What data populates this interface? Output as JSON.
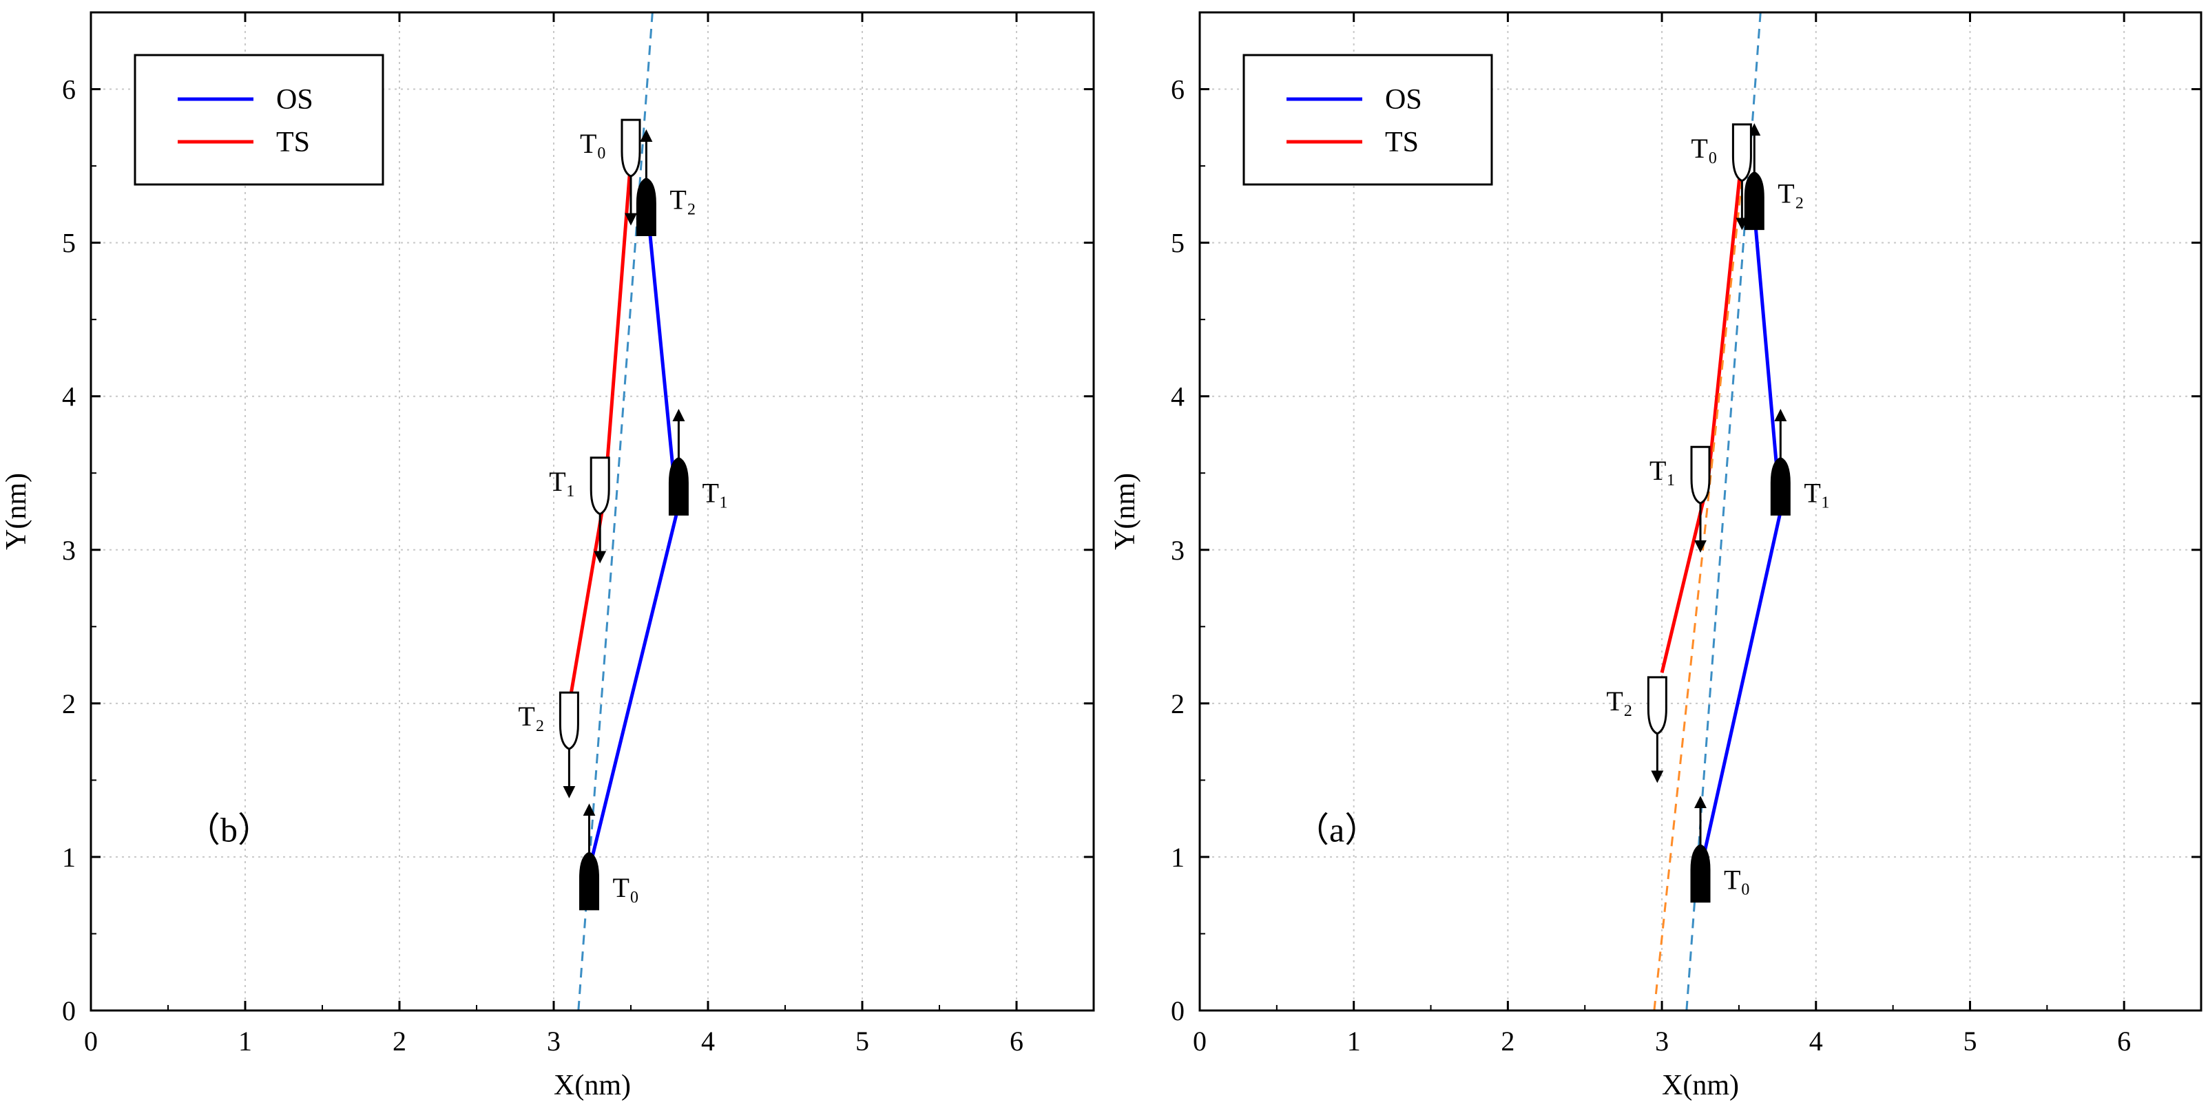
{
  "chart_data": [
    {
      "type": "line",
      "panel_label": "（b）",
      "xlabel": "X(nm)",
      "ylabel": "Y(nm)",
      "xlim": [
        0,
        6.5
      ],
      "ylim": [
        0,
        6.5
      ],
      "xticks": [
        0,
        1,
        2,
        3,
        4,
        5,
        6
      ],
      "yticks": [
        0,
        1,
        2,
        3,
        4,
        5,
        6
      ],
      "grid": true,
      "legend": {
        "position": "top-left",
        "entries": [
          {
            "label": "OS",
            "color": "#0000ff"
          },
          {
            "label": "TS",
            "color": "#ff0000"
          }
        ]
      },
      "series": [
        {
          "name": "OS",
          "color": "#0000ff",
          "style": "solid",
          "x": [
            3.25,
            3.8,
            3.62
          ],
          "y": [
            1.0,
            3.25,
            5.1
          ]
        },
        {
          "name": "TS",
          "color": "#ff0000",
          "style": "solid",
          "x": [
            3.5,
            3.33,
            3.11
          ],
          "y": [
            5.55,
            3.35,
            2.05
          ]
        },
        {
          "name": "reference",
          "color": "#3b8ec4",
          "style": "dashed",
          "x": [
            3.16,
            3.64
          ],
          "y": [
            0.0,
            6.5
          ]
        }
      ],
      "ships": [
        {
          "vessel": "OS",
          "label": "T₀",
          "x": 3.23,
          "y": 0.83,
          "heading": "up",
          "fill": "black"
        },
        {
          "vessel": "OS",
          "label": "T₁",
          "x": 3.81,
          "y": 3.4,
          "heading": "up",
          "fill": "black"
        },
        {
          "vessel": "OS",
          "label": "T₂",
          "x": 3.6,
          "y": 5.22,
          "heading": "up",
          "fill": "black"
        },
        {
          "vessel": "TS",
          "label": "T₀",
          "x": 3.5,
          "y": 5.63,
          "heading": "down",
          "fill": "white"
        },
        {
          "vessel": "TS",
          "label": "T₁",
          "x": 3.3,
          "y": 3.43,
          "heading": "down",
          "fill": "white"
        },
        {
          "vessel": "TS",
          "label": "T₂",
          "x": 3.1,
          "y": 1.9,
          "heading": "down",
          "fill": "white"
        }
      ]
    },
    {
      "type": "line",
      "panel_label": "（a）",
      "xlabel": "X(nm)",
      "ylabel": "Y(nm)",
      "xlim": [
        0,
        6.5
      ],
      "ylim": [
        0,
        6.5
      ],
      "xticks": [
        0,
        1,
        2,
        3,
        4,
        5,
        6
      ],
      "yticks": [
        0,
        1,
        2,
        3,
        4,
        5,
        6
      ],
      "grid": true,
      "legend": {
        "position": "top-left",
        "entries": [
          {
            "label": "OS",
            "color": "#0000ff"
          },
          {
            "label": "TS",
            "color": "#ff0000"
          }
        ]
      },
      "series": [
        {
          "name": "OS",
          "color": "#0000ff",
          "style": "solid",
          "x": [
            3.27,
            3.77,
            3.6
          ],
          "y": [
            1.0,
            3.25,
            5.2
          ]
        },
        {
          "name": "TS",
          "color": "#ff0000",
          "style": "solid",
          "x": [
            3.52,
            3.3,
            3.0
          ],
          "y": [
            5.58,
            3.45,
            2.2
          ]
        },
        {
          "name": "reference OS",
          "color": "#3b8ec4",
          "style": "dashed",
          "x": [
            3.16,
            3.64
          ],
          "y": [
            0.0,
            6.5
          ]
        },
        {
          "name": "reference TS",
          "color": "#ff8c28",
          "style": "dashed",
          "x": [
            2.95,
            3.55
          ],
          "y": [
            0.0,
            5.7
          ]
        }
      ],
      "ships": [
        {
          "vessel": "OS",
          "label": "T₀",
          "x": 3.25,
          "y": 0.88,
          "heading": "up",
          "fill": "black"
        },
        {
          "vessel": "OS",
          "label": "T₁",
          "x": 3.77,
          "y": 3.4,
          "heading": "up",
          "fill": "black"
        },
        {
          "vessel": "OS",
          "label": "T₂",
          "x": 3.6,
          "y": 5.26,
          "heading": "up",
          "fill": "black"
        },
        {
          "vessel": "TS",
          "label": "T₀",
          "x": 3.52,
          "y": 5.6,
          "heading": "down",
          "fill": "white"
        },
        {
          "vessel": "TS",
          "label": "T₁",
          "x": 3.25,
          "y": 3.5,
          "heading": "down",
          "fill": "white"
        },
        {
          "vessel": "TS",
          "label": "T₂",
          "x": 2.97,
          "y": 2.0,
          "heading": "down",
          "fill": "white"
        }
      ]
    }
  ]
}
